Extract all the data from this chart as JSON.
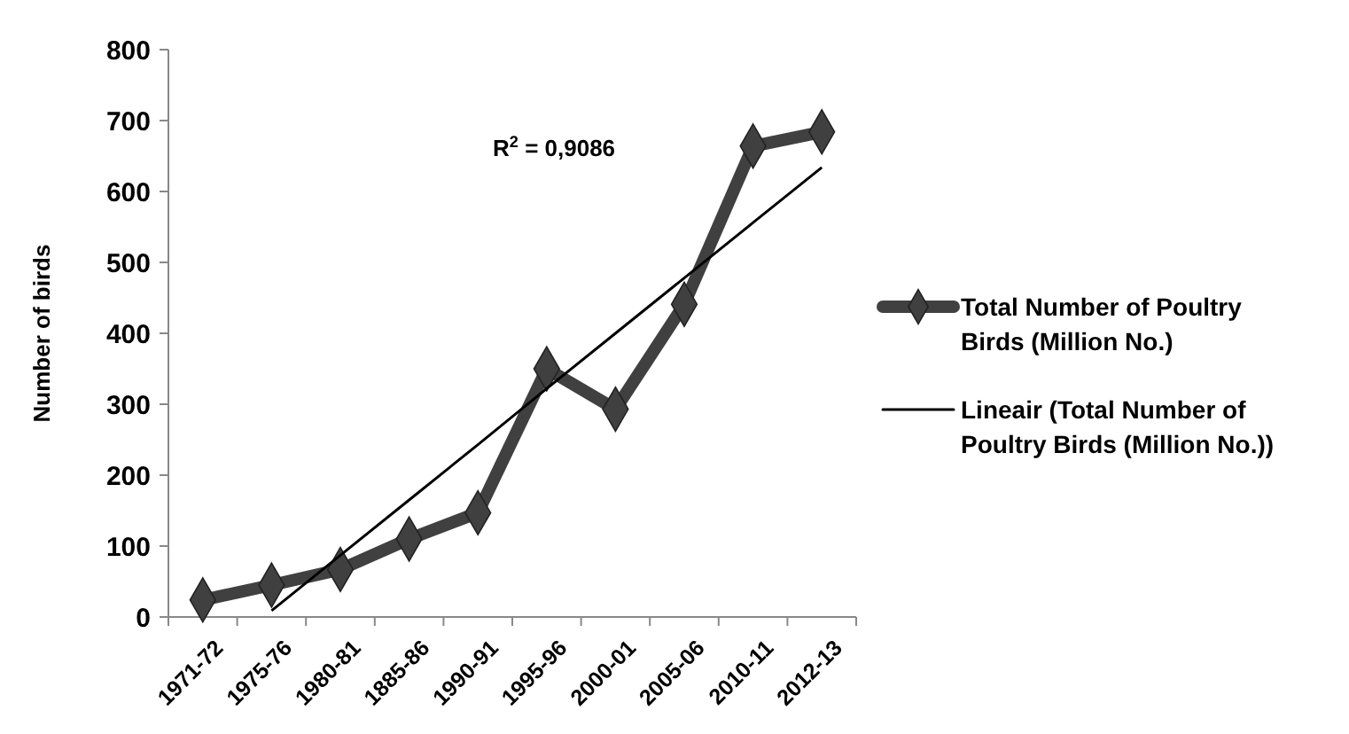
{
  "chart_data": {
    "type": "line",
    "ylabel": "Number of birds",
    "categories": [
      "1971-72",
      "1975-76",
      "1980-81",
      "1885-86",
      "1990-91",
      "1995-96",
      "2000-01",
      "2005-06",
      "2010-11",
      "2012-13"
    ],
    "series": [
      {
        "name": "Total Number of Poultry Birds (Million No.)",
        "color": "#404040",
        "marker": "diamond",
        "values": [
          24,
          45,
          67,
          110,
          147,
          350,
          293,
          441,
          664,
          684
        ]
      },
      {
        "name": "Lineair (Total Number of Poultry Birds (Million No.))",
        "color": "#000000",
        "marker": "none",
        "values": [
          null,
          9,
          87,
          165,
          243,
          322,
          400,
          478,
          556,
          634
        ]
      }
    ],
    "ylim": [
      0,
      800
    ],
    "yticks": [
      0,
      100,
      200,
      300,
      400,
      500,
      600,
      700,
      800
    ],
    "grid": false,
    "legend": "right",
    "annotations": [
      "R$^{2}$ = 0,9086"
    ]
  }
}
